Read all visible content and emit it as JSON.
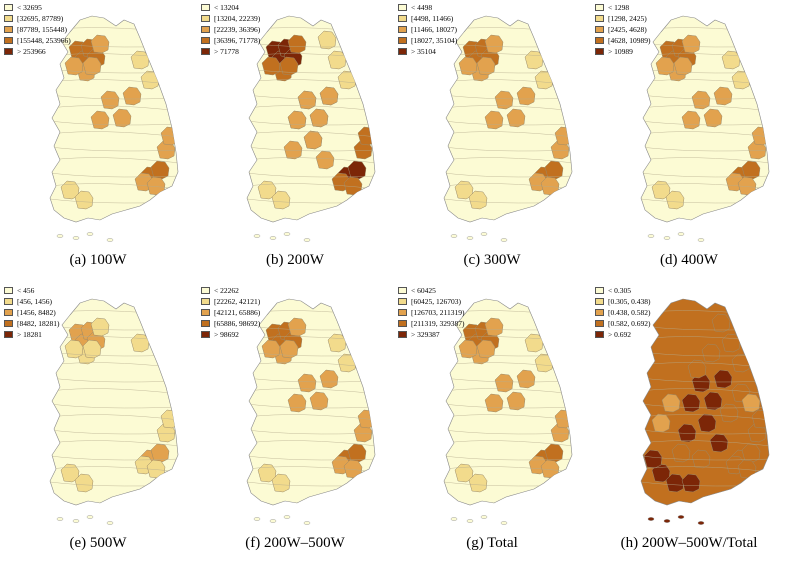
{
  "colors": [
    "#fcfbd4",
    "#f2db8c",
    "#e2a24e",
    "#c1701f",
    "#7c2607"
  ],
  "panels": [
    {
      "caption": "(a) 100W",
      "legend": [
        "< 32695",
        "[32695, 87789)",
        "[87789, 155448)",
        "[155448, 253966)",
        "> 253966"
      ],
      "level": 1
    },
    {
      "caption": "(b) 200W",
      "legend": [
        "< 13204",
        "[13204, 22239)",
        "[22239, 36396)",
        "[36396, 71778)",
        "> 71778"
      ],
      "level": 2
    },
    {
      "caption": "(c) 300W",
      "legend": [
        "< 4498",
        "[4498, 11466)",
        "[11466, 18027)",
        "[18027, 35104)",
        "> 35104"
      ],
      "level": 1
    },
    {
      "caption": "(d) 400W",
      "legend": [
        "< 1298",
        "[1298, 2425)",
        "[2425, 4628)",
        "[4628, 10989)",
        "> 10989"
      ],
      "level": 1
    },
    {
      "caption": "(e) 500W",
      "legend": [
        "< 456",
        "[456, 1456)",
        "[1456, 8482)",
        "[8482, 18281)",
        "> 18281"
      ],
      "level": 0
    },
    {
      "caption": "(f) 200W–500W",
      "legend": [
        "< 22262",
        "[22262, 42121)",
        "[42121, 65886)",
        "[65886, 98692)",
        "> 98692"
      ],
      "level": 1
    },
    {
      "caption": "(g) Total",
      "legend": [
        "< 60425",
        "[60425, 126703)",
        "[126703, 211319)",
        "[211319, 329387)",
        "> 329387"
      ],
      "level": 1
    },
    {
      "caption": "(h) 200W–500W/Total",
      "legend": [
        "< 0.305",
        "[0.305, 0.438)",
        "[0.438, 0.582)",
        "[0.582, 0.692)",
        "> 0.692"
      ],
      "level": 3
    }
  ]
}
